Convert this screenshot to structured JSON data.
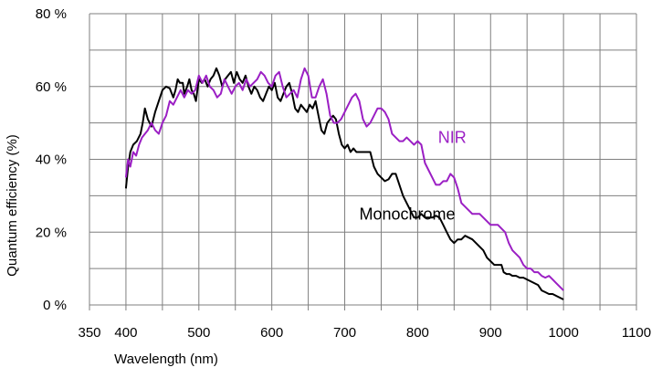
{
  "chart_data": {
    "type": "line",
    "xlabel": "Wavelength (nm)",
    "ylabel": "Quantum efficiency (%)",
    "xlim": [
      350,
      1100
    ],
    "ylim": [
      0,
      80
    ],
    "x_ticks": [
      350,
      400,
      500,
      600,
      700,
      800,
      900,
      1000,
      1100
    ],
    "x_tick_labels": [
      "350",
      "400",
      "500",
      "600",
      "700",
      "800",
      "900",
      "1000",
      "1100"
    ],
    "y_ticks": [
      0,
      20,
      40,
      60,
      80
    ],
    "y_tick_labels": [
      "0 %",
      "20 %",
      "40 %",
      "60 %",
      "80 %"
    ],
    "x_grid": [
      350,
      400,
      450,
      500,
      550,
      600,
      650,
      700,
      750,
      800,
      850,
      900,
      950,
      1000,
      1050,
      1100
    ],
    "y_grid": [
      0,
      10,
      20,
      30,
      40,
      50,
      60,
      70,
      80
    ],
    "grid": true,
    "series": [
      {
        "name": "Monochrome",
        "color": "#000000",
        "points": [
          [
            400,
            32
          ],
          [
            403,
            38
          ],
          [
            406,
            42
          ],
          [
            410,
            44
          ],
          [
            415,
            45
          ],
          [
            420,
            47
          ],
          [
            423,
            50
          ],
          [
            426,
            54
          ],
          [
            430,
            51
          ],
          [
            435,
            49
          ],
          [
            440,
            53
          ],
          [
            445,
            56
          ],
          [
            450,
            59
          ],
          [
            455,
            60
          ],
          [
            460,
            59.5
          ],
          [
            465,
            57
          ],
          [
            468,
            59
          ],
          [
            471,
            62
          ],
          [
            474,
            61
          ],
          [
            478,
            61
          ],
          [
            480,
            58
          ],
          [
            484,
            60
          ],
          [
            487,
            62
          ],
          [
            490,
            59
          ],
          [
            493,
            58
          ],
          [
            496,
            56
          ],
          [
            500,
            62
          ],
          [
            504,
            61
          ],
          [
            508,
            62
          ],
          [
            512,
            60
          ],
          [
            516,
            62
          ],
          [
            520,
            63
          ],
          [
            524,
            65
          ],
          [
            528,
            63
          ],
          [
            532,
            60
          ],
          [
            536,
            62
          ],
          [
            540,
            63
          ],
          [
            544,
            64
          ],
          [
            548,
            61
          ],
          [
            552,
            64
          ],
          [
            556,
            62
          ],
          [
            560,
            61
          ],
          [
            564,
            63
          ],
          [
            568,
            60
          ],
          [
            572,
            58
          ],
          [
            576,
            60
          ],
          [
            580,
            59
          ],
          [
            584,
            57
          ],
          [
            588,
            56
          ],
          [
            592,
            58
          ],
          [
            596,
            60
          ],
          [
            600,
            59
          ],
          [
            604,
            61
          ],
          [
            608,
            57
          ],
          [
            612,
            56
          ],
          [
            616,
            58
          ],
          [
            620,
            60
          ],
          [
            624,
            61
          ],
          [
            628,
            58
          ],
          [
            632,
            54
          ],
          [
            636,
            53
          ],
          [
            640,
            55
          ],
          [
            644,
            54
          ],
          [
            648,
            53
          ],
          [
            652,
            55
          ],
          [
            656,
            54
          ],
          [
            660,
            56
          ],
          [
            664,
            52
          ],
          [
            668,
            48
          ],
          [
            672,
            47
          ],
          [
            676,
            50
          ],
          [
            680,
            51
          ],
          [
            684,
            52
          ],
          [
            688,
            51
          ],
          [
            692,
            47
          ],
          [
            696,
            44
          ],
          [
            700,
            43
          ],
          [
            704,
            44
          ],
          [
            708,
            42
          ],
          [
            712,
            43
          ],
          [
            716,
            42
          ],
          [
            720,
            42
          ],
          [
            725,
            42
          ],
          [
            730,
            42
          ],
          [
            735,
            42
          ],
          [
            740,
            38
          ],
          [
            745,
            36
          ],
          [
            750,
            35
          ],
          [
            755,
            34
          ],
          [
            760,
            34.5
          ],
          [
            765,
            36
          ],
          [
            770,
            36
          ],
          [
            775,
            33
          ],
          [
            780,
            30
          ],
          [
            785,
            28
          ],
          [
            790,
            26
          ],
          [
            795,
            24
          ],
          [
            800,
            24
          ],
          [
            805,
            25
          ],
          [
            810,
            24
          ],
          [
            815,
            24
          ],
          [
            820,
            24
          ],
          [
            825,
            24.5
          ],
          [
            830,
            24
          ],
          [
            835,
            22
          ],
          [
            840,
            20
          ],
          [
            845,
            18
          ],
          [
            850,
            17
          ],
          [
            855,
            18
          ],
          [
            860,
            18
          ],
          [
            865,
            19
          ],
          [
            870,
            18.5
          ],
          [
            875,
            18
          ],
          [
            880,
            17
          ],
          [
            885,
            16
          ],
          [
            890,
            15
          ],
          [
            895,
            13
          ],
          [
            900,
            12
          ],
          [
            905,
            11
          ],
          [
            910,
            11
          ],
          [
            915,
            11
          ],
          [
            918,
            9
          ],
          [
            922,
            8.5
          ],
          [
            926,
            8.5
          ],
          [
            930,
            8
          ],
          [
            935,
            8
          ],
          [
            940,
            7.5
          ],
          [
            945,
            7.5
          ],
          [
            950,
            7
          ],
          [
            955,
            6.5
          ],
          [
            960,
            6
          ],
          [
            965,
            5.5
          ],
          [
            970,
            4
          ],
          [
            975,
            3.5
          ],
          [
            980,
            3
          ],
          [
            985,
            3
          ],
          [
            990,
            2.5
          ],
          [
            995,
            2
          ],
          [
            1000,
            1.5
          ]
        ]
      },
      {
        "name": "NIR",
        "color": "#9b1fc4",
        "points": [
          [
            400,
            35
          ],
          [
            403,
            40
          ],
          [
            406,
            38
          ],
          [
            410,
            42
          ],
          [
            414,
            41
          ],
          [
            418,
            44
          ],
          [
            422,
            46
          ],
          [
            426,
            47
          ],
          [
            430,
            48
          ],
          [
            435,
            50
          ],
          [
            440,
            48
          ],
          [
            445,
            47
          ],
          [
            450,
            50
          ],
          [
            455,
            52
          ],
          [
            460,
            56
          ],
          [
            465,
            55
          ],
          [
            470,
            57
          ],
          [
            475,
            59
          ],
          [
            480,
            57
          ],
          [
            485,
            59
          ],
          [
            490,
            58
          ],
          [
            495,
            59
          ],
          [
            500,
            63
          ],
          [
            505,
            61
          ],
          [
            510,
            63
          ],
          [
            515,
            60
          ],
          [
            520,
            59
          ],
          [
            525,
            57
          ],
          [
            530,
            58
          ],
          [
            535,
            62
          ],
          [
            540,
            60
          ],
          [
            545,
            58
          ],
          [
            550,
            60
          ],
          [
            555,
            61
          ],
          [
            560,
            59
          ],
          [
            565,
            62
          ],
          [
            570,
            60
          ],
          [
            575,
            61
          ],
          [
            580,
            62
          ],
          [
            585,
            64
          ],
          [
            590,
            63
          ],
          [
            595,
            61
          ],
          [
            600,
            60
          ],
          [
            605,
            63
          ],
          [
            610,
            64
          ],
          [
            615,
            60
          ],
          [
            620,
            57
          ],
          [
            625,
            58
          ],
          [
            630,
            59
          ],
          [
            635,
            57
          ],
          [
            640,
            62
          ],
          [
            645,
            65
          ],
          [
            650,
            63
          ],
          [
            655,
            57
          ],
          [
            660,
            57
          ],
          [
            665,
            60
          ],
          [
            670,
            62
          ],
          [
            675,
            58
          ],
          [
            680,
            52
          ],
          [
            685,
            50
          ],
          [
            690,
            50
          ],
          [
            695,
            51
          ],
          [
            700,
            53
          ],
          [
            705,
            55
          ],
          [
            710,
            57
          ],
          [
            715,
            58
          ],
          [
            720,
            56
          ],
          [
            725,
            51
          ],
          [
            730,
            49
          ],
          [
            735,
            50
          ],
          [
            740,
            52
          ],
          [
            745,
            54
          ],
          [
            750,
            54
          ],
          [
            755,
            53
          ],
          [
            760,
            51
          ],
          [
            765,
            47
          ],
          [
            770,
            46
          ],
          [
            775,
            45
          ],
          [
            780,
            45
          ],
          [
            785,
            46
          ],
          [
            790,
            45
          ],
          [
            795,
            44
          ],
          [
            800,
            45
          ],
          [
            805,
            44
          ],
          [
            810,
            39
          ],
          [
            815,
            37
          ],
          [
            820,
            35
          ],
          [
            825,
            33
          ],
          [
            830,
            33
          ],
          [
            835,
            34
          ],
          [
            840,
            34
          ],
          [
            845,
            36
          ],
          [
            850,
            35
          ],
          [
            855,
            32
          ],
          [
            860,
            28
          ],
          [
            865,
            27
          ],
          [
            870,
            26
          ],
          [
            875,
            25
          ],
          [
            880,
            25
          ],
          [
            885,
            25
          ],
          [
            890,
            24
          ],
          [
            895,
            23
          ],
          [
            900,
            22
          ],
          [
            905,
            22
          ],
          [
            910,
            22
          ],
          [
            915,
            21
          ],
          [
            920,
            20
          ],
          [
            925,
            17
          ],
          [
            930,
            15
          ],
          [
            935,
            14
          ],
          [
            940,
            13
          ],
          [
            945,
            11
          ],
          [
            950,
            10
          ],
          [
            955,
            10
          ],
          [
            960,
            9
          ],
          [
            965,
            9
          ],
          [
            970,
            8
          ],
          [
            975,
            7.5
          ],
          [
            980,
            8
          ],
          [
            985,
            7
          ],
          [
            990,
            6
          ],
          [
            995,
            5
          ],
          [
            1000,
            4
          ]
        ]
      }
    ],
    "annotations": [
      {
        "text": "NIR",
        "series": "NIR",
        "x": 828,
        "y": 44.5,
        "color": "#9b1fc4"
      },
      {
        "text": "Monochrome",
        "series": "Monochrome",
        "x": 720,
        "y": 23.5,
        "color": "#000000"
      }
    ]
  }
}
